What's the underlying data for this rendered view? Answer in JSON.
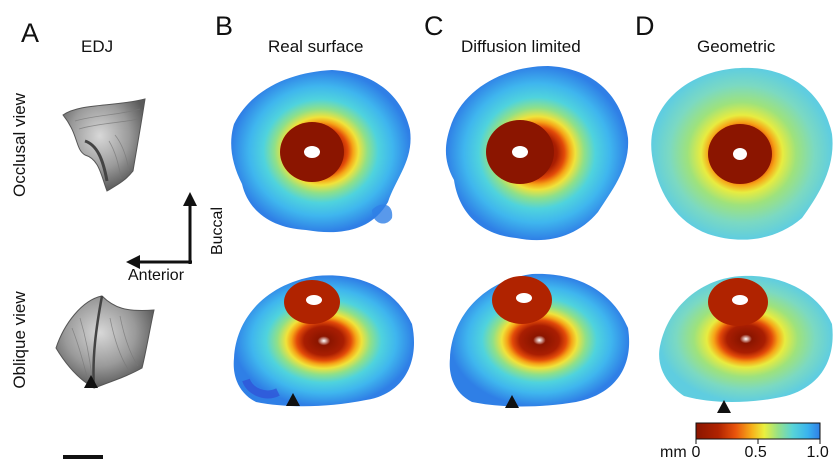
{
  "panels": [
    {
      "letter": "A",
      "title": "EDJ"
    },
    {
      "letter": "B",
      "title": "Real surface"
    },
    {
      "letter": "C",
      "title": "Diffusion limited"
    },
    {
      "letter": "D",
      "title": "Geometric"
    }
  ],
  "row_labels": {
    "top": "Occlusal view",
    "bottom": "Oblique view"
  },
  "orientation": {
    "horizontal": "Anterior",
    "vertical": "Buccal"
  },
  "colorbar": {
    "unit": "mm",
    "ticks": [
      {
        "value": 0,
        "label": "0"
      },
      {
        "value": 0.5,
        "label": "0.5"
      },
      {
        "value": 1.0,
        "label": "1.0"
      }
    ],
    "range": [
      0,
      1.0
    ],
    "colors": [
      "#8b1500",
      "#d23a06",
      "#f07a10",
      "#f5c820",
      "#e8ef3c",
      "#9ee27c",
      "#5ad6d6",
      "#39b5ee",
      "#2f7fe6"
    ]
  }
}
